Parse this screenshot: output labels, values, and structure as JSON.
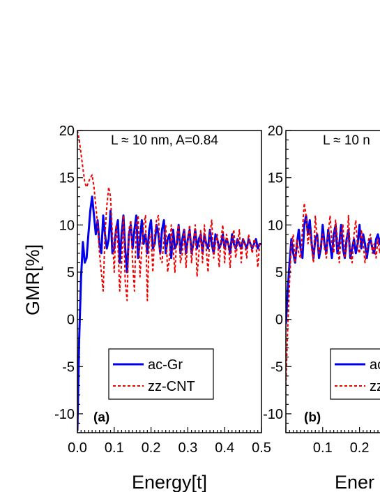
{
  "chart_data": [
    {
      "type": "line",
      "panel_label": "(a)",
      "annotation": "L ≈ 10 nm, A=0.84",
      "xlabel": "Energy[t]",
      "ylabel": "GMR[%]",
      "xlim": [
        0.0,
        0.5
      ],
      "ylim": [
        -12,
        20
      ],
      "x_ticks": [
        "0.0",
        "0.1",
        "0.2",
        "0.3",
        "0.4",
        "0.5"
      ],
      "y_ticks": [
        "20",
        "15",
        "10",
        "5",
        "0",
        "-5",
        "-10"
      ],
      "legend_position": "lower-center",
      "series": [
        {
          "name": "ac-Gr",
          "color": "#0000ee",
          "style": "solid",
          "x": [
            0.0,
            0.005,
            0.01,
            0.015,
            0.02,
            0.025,
            0.03,
            0.035,
            0.04,
            0.045,
            0.05,
            0.055,
            0.06,
            0.065,
            0.07,
            0.075,
            0.08,
            0.085,
            0.09,
            0.095,
            0.1,
            0.105,
            0.11,
            0.115,
            0.12,
            0.125,
            0.13,
            0.135,
            0.14,
            0.145,
            0.15,
            0.155,
            0.16,
            0.165,
            0.17,
            0.175,
            0.18,
            0.185,
            0.19,
            0.195,
            0.2,
            0.205,
            0.21,
            0.215,
            0.22,
            0.225,
            0.23,
            0.235,
            0.24,
            0.245,
            0.25,
            0.255,
            0.26,
            0.265,
            0.27,
            0.275,
            0.28,
            0.285,
            0.29,
            0.295,
            0.3,
            0.305,
            0.31,
            0.315,
            0.32,
            0.325,
            0.33,
            0.335,
            0.34,
            0.345,
            0.35,
            0.355,
            0.36,
            0.365,
            0.37,
            0.375,
            0.38,
            0.385,
            0.39,
            0.395,
            0.4,
            0.405,
            0.41,
            0.415,
            0.42,
            0.425,
            0.43,
            0.435,
            0.44,
            0.445,
            0.45,
            0.455,
            0.46,
            0.465,
            0.47,
            0.475,
            0.48,
            0.485,
            0.49,
            0.495,
            0.5
          ],
          "values": [
            -11.8,
            -2.0,
            4.5,
            8.2,
            6.0,
            6.5,
            9.0,
            11.5,
            13.0,
            11.0,
            9.0,
            10.5,
            8.0,
            7.0,
            11.0,
            9.0,
            7.5,
            8.5,
            11.5,
            7.0,
            7.5,
            9.5,
            10.5,
            6.0,
            9.0,
            11.0,
            7.5,
            5.0,
            9.0,
            10.0,
            7.5,
            9.5,
            11.0,
            6.5,
            8.5,
            10.5,
            8.0,
            9.0,
            7.0,
            9.5,
            10.5,
            7.5,
            8.0,
            10.0,
            9.0,
            7.0,
            9.5,
            10.5,
            7.0,
            8.5,
            9.0,
            6.5,
            9.5,
            7.5,
            8.0,
            10.0,
            7.0,
            8.5,
            9.5,
            7.0,
            8.5,
            9.5,
            7.0,
            8.0,
            9.5,
            7.5,
            8.5,
            9.0,
            7.0,
            9.0,
            8.0,
            7.5,
            9.5,
            8.0,
            7.0,
            9.0,
            8.5,
            7.5,
            8.0,
            9.0,
            7.5,
            8.5,
            8.0,
            7.0,
            9.0,
            8.0,
            7.5,
            8.5,
            8.0,
            7.5,
            8.5,
            8.0,
            7.5,
            8.5,
            8.0,
            7.5,
            8.0,
            8.5,
            7.5,
            8.0,
            8.0
          ]
        },
        {
          "name": "zz-CNT",
          "color": "#ee0000",
          "style": "dashed",
          "x": [
            0.0,
            0.005,
            0.01,
            0.015,
            0.02,
            0.025,
            0.03,
            0.035,
            0.04,
            0.045,
            0.05,
            0.055,
            0.06,
            0.065,
            0.07,
            0.075,
            0.08,
            0.085,
            0.09,
            0.095,
            0.1,
            0.105,
            0.11,
            0.115,
            0.12,
            0.125,
            0.13,
            0.135,
            0.14,
            0.145,
            0.15,
            0.155,
            0.16,
            0.165,
            0.17,
            0.175,
            0.18,
            0.185,
            0.19,
            0.195,
            0.2,
            0.205,
            0.21,
            0.215,
            0.22,
            0.225,
            0.23,
            0.235,
            0.24,
            0.245,
            0.25,
            0.255,
            0.26,
            0.265,
            0.27,
            0.275,
            0.28,
            0.285,
            0.29,
            0.295,
            0.3,
            0.305,
            0.31,
            0.315,
            0.32,
            0.325,
            0.33,
            0.335,
            0.34,
            0.345,
            0.35,
            0.355,
            0.36,
            0.365,
            0.37,
            0.375,
            0.38,
            0.385,
            0.39,
            0.395,
            0.4,
            0.405,
            0.41,
            0.415,
            0.42,
            0.425,
            0.43,
            0.435,
            0.44,
            0.445,
            0.45,
            0.455,
            0.46,
            0.465,
            0.47,
            0.475,
            0.48,
            0.485,
            0.49,
            0.495,
            0.5
          ],
          "values": [
            20.0,
            19.0,
            17.5,
            16.0,
            14.5,
            14.0,
            14.5,
            15.0,
            15.3,
            14.0,
            12.0,
            10.0,
            7.0,
            5.0,
            3.0,
            9.0,
            12.0,
            14.0,
            13.0,
            9.0,
            5.0,
            10.0,
            8.0,
            3.0,
            6.0,
            11.0,
            4.0,
            2.0,
            9.5,
            10.5,
            6.0,
            3.0,
            10.0,
            11.0,
            4.5,
            7.5,
            10.0,
            11.0,
            2.0,
            8.5,
            9.0,
            5.0,
            9.0,
            10.5,
            11.0,
            6.5,
            6.0,
            8.5,
            10.0,
            5.0,
            6.5,
            10.0,
            7.5,
            5.0,
            9.0,
            10.0,
            6.0,
            7.0,
            9.5,
            5.5,
            8.5,
            10.0,
            6.0,
            8.0,
            10.0,
            4.5,
            7.0,
            9.5,
            6.0,
            10.0,
            7.5,
            5.0,
            9.0,
            10.5,
            6.5,
            8.0,
            9.0,
            5.5,
            8.5,
            10.0,
            6.0,
            9.0,
            8.0,
            5.5,
            8.5,
            9.5,
            6.5,
            8.0,
            9.5,
            6.0,
            8.5,
            8.0,
            6.5,
            9.0,
            8.0,
            7.0,
            8.5,
            8.0,
            5.5,
            8.0,
            8.0
          ]
        }
      ]
    },
    {
      "type": "line",
      "panel_label": "(b)",
      "annotation": "L ≈ 10 n",
      "xlabel": "Ener",
      "ylabel": "",
      "xlim": [
        0.0,
        0.5
      ],
      "ylim": [
        -12,
        20
      ],
      "x_ticks": [
        "0.1",
        "0.2"
      ],
      "y_ticks": [
        "20",
        "15",
        "10",
        "5",
        "0",
        "-5",
        "-10"
      ],
      "legend_position": "lower-center",
      "legend_labels": [
        "ac",
        "zz"
      ],
      "series": [
        {
          "name": "ac",
          "color": "#0000ee",
          "style": "solid",
          "x": [
            0.0,
            0.005,
            0.01,
            0.015,
            0.02,
            0.025,
            0.03,
            0.035,
            0.04,
            0.045,
            0.05,
            0.055,
            0.06,
            0.065,
            0.07,
            0.075,
            0.08,
            0.085,
            0.09,
            0.095,
            0.1,
            0.105,
            0.11,
            0.115,
            0.12,
            0.125,
            0.13,
            0.135,
            0.14,
            0.145,
            0.15,
            0.155,
            0.16,
            0.165,
            0.17,
            0.175,
            0.18,
            0.185,
            0.19,
            0.195,
            0.2,
            0.205,
            0.21,
            0.215,
            0.22,
            0.225,
            0.23,
            0.235,
            0.24,
            0.245,
            0.25,
            0.255,
            0.26
          ],
          "values": [
            -0.5,
            3.0,
            6.0,
            8.5,
            7.0,
            6.0,
            8.0,
            9.5,
            7.5,
            6.5,
            10.0,
            11.0,
            9.0,
            10.5,
            8.0,
            6.5,
            8.5,
            9.0,
            6.5,
            7.5,
            10.0,
            8.0,
            7.0,
            9.5,
            8.0,
            6.5,
            9.0,
            10.0,
            7.0,
            8.0,
            10.0,
            7.5,
            6.5,
            8.5,
            9.5,
            6.5,
            7.5,
            8.5,
            7.0,
            8.0,
            10.0,
            7.5,
            9.0,
            8.0,
            6.5,
            8.0,
            8.5,
            7.5,
            7.0,
            8.5,
            9.0,
            8.0,
            9.0
          ]
        },
        {
          "name": "zz",
          "color": "#ee0000",
          "style": "dashed",
          "x": [
            0.0,
            0.005,
            0.01,
            0.015,
            0.02,
            0.025,
            0.03,
            0.035,
            0.04,
            0.045,
            0.05,
            0.055,
            0.06,
            0.065,
            0.07,
            0.075,
            0.08,
            0.085,
            0.09,
            0.095,
            0.1,
            0.105,
            0.11,
            0.115,
            0.12,
            0.125,
            0.13,
            0.135,
            0.14,
            0.145,
            0.15,
            0.155,
            0.16,
            0.165,
            0.17,
            0.175,
            0.18,
            0.185,
            0.19,
            0.195,
            0.2,
            0.205,
            0.21,
            0.215,
            0.22,
            0.225,
            0.23,
            0.235,
            0.24,
            0.245,
            0.25,
            0.255,
            0.26
          ],
          "values": [
            -7.0,
            -1.0,
            4.0,
            8.0,
            9.0,
            6.0,
            8.5,
            7.0,
            6.5,
            9.5,
            12.3,
            11.0,
            8.0,
            9.5,
            7.5,
            6.0,
            11.0,
            8.5,
            7.0,
            8.0,
            9.0,
            7.5,
            6.5,
            9.0,
            11.0,
            8.0,
            7.0,
            10.5,
            8.5,
            6.0,
            9.0,
            10.0,
            6.5,
            7.5,
            11.0,
            7.0,
            6.0,
            9.0,
            10.5,
            7.5,
            7.0,
            9.5,
            8.0,
            6.0,
            7.5,
            8.5,
            9.0,
            7.0,
            8.0,
            6.5,
            8.5,
            7.0,
            8.5
          ]
        }
      ]
    }
  ]
}
